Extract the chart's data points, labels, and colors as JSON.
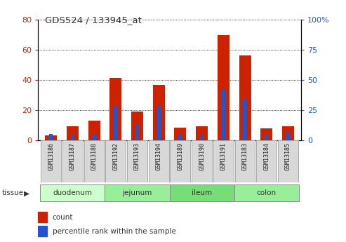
{
  "title": "GDS524 / 133945_at",
  "samples": [
    "GSM13186",
    "GSM13187",
    "GSM13188",
    "GSM13192",
    "GSM13193",
    "GSM13194",
    "GSM13189",
    "GSM13190",
    "GSM13191",
    "GSM13183",
    "GSM13184",
    "GSM13185"
  ],
  "count_values": [
    3.5,
    9.5,
    13.0,
    41.5,
    19.0,
    36.5,
    8.5,
    9.5,
    69.5,
    56.0,
    8.0,
    9.5
  ],
  "percentile_values": [
    5.0,
    5.0,
    5.0,
    28.5,
    13.5,
    28.0,
    5.5,
    5.5,
    42.5,
    33.5,
    5.5,
    6.5
  ],
  "tissues": [
    {
      "label": "duodenum",
      "start": 0,
      "end": 3,
      "color": "#ccffcc"
    },
    {
      "label": "jejunum",
      "start": 3,
      "end": 6,
      "color": "#99ee99"
    },
    {
      "label": "ileum",
      "start": 6,
      "end": 9,
      "color": "#77dd77"
    },
    {
      "label": "colon",
      "start": 9,
      "end": 12,
      "color": "#99ee99"
    }
  ],
  "ylim_left": [
    0,
    80
  ],
  "ylim_right": [
    0,
    100
  ],
  "yticks_left": [
    0,
    20,
    40,
    60,
    80
  ],
  "yticks_right": [
    0,
    25,
    50,
    75,
    100
  ],
  "bar_width": 0.55,
  "count_color": "#cc2200",
  "percentile_color": "#2255cc",
  "bg_color": "#ffffff",
  "plot_bg_color": "#ffffff",
  "left_tick_color": "#cc2200",
  "right_tick_color": "#2255cc",
  "tissue_label_color": "#333333",
  "sample_box_color": "#d8d8d8",
  "sample_box_edge": "#aaaaaa",
  "legend_count_label": "count",
  "legend_percentile_label": "percentile rank within the sample"
}
